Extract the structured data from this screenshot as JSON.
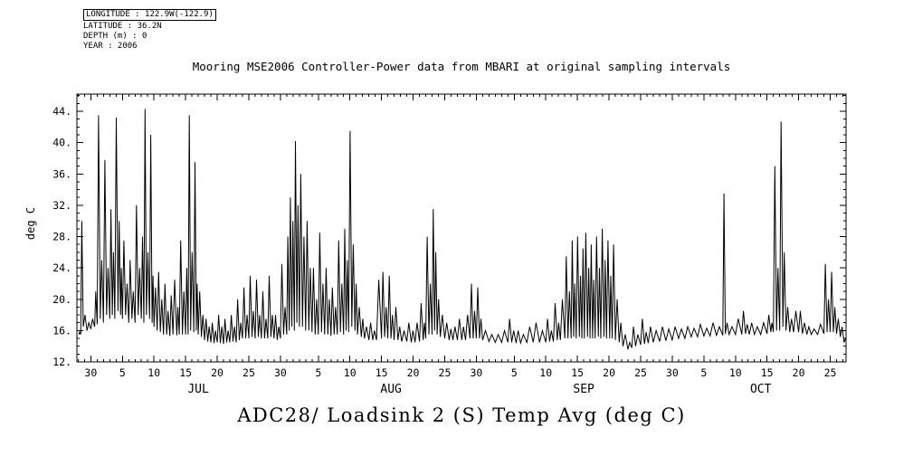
{
  "meta": {
    "lines": [
      "LONGITUDE : 122.9W(-122.9)",
      "LATITUDE : 36.2N",
      "DEPTH (m) : 0",
      "YEAR : 2006"
    ]
  },
  "title": "Mooring MSE2006 Controller-Power data from MBARI at original sampling intervals",
  "footer_title": "ADC28/ Loadsink 2 (S) Temp Avg (deg C)",
  "colors": {
    "line": "#000000",
    "background": "#ffffff",
    "text": "#000000"
  },
  "chart_data": {
    "type": "line",
    "title": "Mooring MSE2006 Controller-Power data from MBARI at original sampling intervals",
    "caption": "ADC28/ Loadsink 2 (S) Temp Avg (deg C)",
    "ylabel": "deg C",
    "xlabel": "",
    "ylim": [
      12,
      46.2
    ],
    "xlim_days": [
      -2.2,
      119.5
    ],
    "x_unit": "days since Jun 30 2006 (tick labels are calendar day numbers)",
    "grid": false,
    "legend": "none",
    "yticks": {
      "major_values": [
        12,
        16,
        20,
        24,
        28,
        32,
        36,
        40,
        44
      ],
      "labels": [
        "12.",
        "16.",
        "20.",
        "24.",
        "28.",
        "32.",
        "36.",
        "40.",
        "44."
      ],
      "minor_step": 1
    },
    "xticks": {
      "major": [
        [
          0,
          "30"
        ],
        [
          5,
          "5"
        ],
        [
          10,
          "10"
        ],
        [
          15,
          "15"
        ],
        [
          20,
          "20"
        ],
        [
          25,
          "25"
        ],
        [
          30,
          "30"
        ],
        [
          36,
          "5"
        ],
        [
          41,
          "10"
        ],
        [
          46,
          "15"
        ],
        [
          51,
          "20"
        ],
        [
          56,
          "25"
        ],
        [
          61,
          "30"
        ],
        [
          67,
          "5"
        ],
        [
          72,
          "10"
        ],
        [
          77,
          "15"
        ],
        [
          82,
          "20"
        ],
        [
          87,
          "25"
        ],
        [
          92,
          "30"
        ],
        [
          97,
          "5"
        ],
        [
          102,
          "10"
        ],
        [
          107,
          "15"
        ],
        [
          112,
          "20"
        ],
        [
          117,
          "25"
        ]
      ],
      "minor_step": 1
    },
    "months": [
      [
        17,
        "JUL"
      ],
      [
        47.5,
        "AUG"
      ],
      [
        78,
        "SEP"
      ],
      [
        106,
        "OCT"
      ]
    ],
    "series": [
      {
        "name": "ADC28/ Loadsink 2 (S) Temp Avg (deg C)",
        "units": "deg C",
        "encoding": "each entry: [day, baseline_degC, daily_spike_peak_degC]",
        "points": [
          [
            -1.9,
            15.5,
            15.8
          ],
          [
            -1.6,
            15.5,
            30
          ],
          [
            -1.2,
            16.5,
            18
          ],
          [
            -0.6,
            16,
            17
          ],
          [
            0,
            16.2,
            17.5
          ],
          [
            0.6,
            16.5,
            21
          ],
          [
            1,
            16.8,
            43.5
          ],
          [
            1.5,
            17.5,
            25
          ],
          [
            2,
            17,
            37.8
          ],
          [
            2.5,
            18,
            24
          ],
          [
            3,
            17.5,
            31.5
          ],
          [
            3.4,
            18,
            26
          ],
          [
            3.8,
            17.5,
            43.2
          ],
          [
            4.3,
            18.5,
            30
          ],
          [
            4.7,
            18,
            24
          ],
          [
            5,
            17.5,
            27.5
          ],
          [
            5.5,
            18,
            22
          ],
          [
            6,
            17,
            25
          ],
          [
            6.5,
            17.5,
            21
          ],
          [
            7,
            17,
            32
          ],
          [
            7.5,
            18,
            24
          ],
          [
            8,
            17.5,
            28
          ],
          [
            8.4,
            17,
            44.3
          ],
          [
            8.8,
            18,
            26
          ],
          [
            9.3,
            17.5,
            41
          ],
          [
            9.7,
            17,
            23
          ],
          [
            10,
            16.5,
            21.5
          ],
          [
            10.5,
            16,
            23.5
          ],
          [
            11,
            15.8,
            20
          ],
          [
            11.5,
            15.5,
            22
          ],
          [
            12,
            15.5,
            18.5
          ],
          [
            12.5,
            15.3,
            20.5
          ],
          [
            13,
            15.5,
            22.5
          ],
          [
            13.6,
            15.4,
            19
          ],
          [
            14,
            15.5,
            27.5
          ],
          [
            14.5,
            15.5,
            21
          ],
          [
            15,
            15.5,
            24
          ],
          [
            15.4,
            15.5,
            43.5
          ],
          [
            15.8,
            16,
            26
          ],
          [
            16.3,
            15.8,
            37.5
          ],
          [
            16.7,
            16,
            22
          ],
          [
            17,
            15.5,
            21
          ],
          [
            17.5,
            15.2,
            18
          ],
          [
            18,
            14.8,
            17.5
          ],
          [
            18.5,
            14.6,
            16.5
          ],
          [
            19,
            14.5,
            17
          ],
          [
            19.5,
            14.4,
            16
          ],
          [
            20,
            14.5,
            18
          ],
          [
            20.5,
            14.4,
            16.5
          ],
          [
            21,
            14.3,
            17.5
          ],
          [
            21.5,
            14.5,
            16
          ],
          [
            22,
            14.5,
            18
          ],
          [
            22.5,
            14.6,
            16.5
          ],
          [
            23,
            14.5,
            20
          ],
          [
            23.5,
            14.8,
            17
          ],
          [
            24,
            15,
            21.5
          ],
          [
            24.5,
            15,
            18
          ],
          [
            25,
            15,
            23
          ],
          [
            25.5,
            15.2,
            18.5
          ],
          [
            26,
            15,
            22.5
          ],
          [
            26.5,
            15.2,
            18
          ],
          [
            27,
            15,
            21
          ],
          [
            27.5,
            15,
            17.5
          ],
          [
            28,
            15,
            23
          ],
          [
            28.5,
            15.2,
            18
          ],
          [
            29,
            15,
            18
          ],
          [
            29.5,
            14.8,
            16.5
          ],
          [
            30,
            15,
            24.5
          ],
          [
            30.5,
            15.5,
            19
          ],
          [
            31,
            15.5,
            28
          ],
          [
            31.4,
            16,
            33
          ],
          [
            31.8,
            16.5,
            30
          ],
          [
            32.2,
            16,
            40.2
          ],
          [
            32.6,
            17,
            32
          ],
          [
            33,
            16.5,
            36
          ],
          [
            33.5,
            16.5,
            28
          ],
          [
            34,
            16,
            30
          ],
          [
            34.5,
            16,
            24
          ],
          [
            35,
            15.8,
            24
          ],
          [
            35.5,
            15.5,
            20
          ],
          [
            36,
            15.5,
            28.5
          ],
          [
            36.5,
            15.8,
            22
          ],
          [
            37,
            15.5,
            24
          ],
          [
            37.5,
            15.5,
            20
          ],
          [
            38,
            15.3,
            21.5
          ],
          [
            38.5,
            15.5,
            19
          ],
          [
            39,
            15.5,
            27.5
          ],
          [
            39.5,
            15.8,
            22
          ],
          [
            40,
            15.5,
            29
          ],
          [
            40.4,
            16,
            25
          ],
          [
            40.8,
            15.8,
            41.5
          ],
          [
            41.3,
            16.5,
            27
          ],
          [
            41.8,
            16,
            22
          ],
          [
            42.2,
            15.5,
            19
          ],
          [
            42.8,
            15.2,
            17.5
          ],
          [
            43.3,
            15,
            16.5
          ],
          [
            44,
            14.8,
            17
          ],
          [
            44.6,
            14.8,
            16
          ],
          [
            45.2,
            14.8,
            22.5
          ],
          [
            46,
            15,
            23.5
          ],
          [
            46.5,
            15.2,
            19
          ],
          [
            47,
            15,
            23
          ],
          [
            47.5,
            15,
            18
          ],
          [
            48,
            14.8,
            19
          ],
          [
            48.6,
            14.8,
            16.5
          ],
          [
            49.2,
            14.6,
            16
          ],
          [
            50,
            14.6,
            17
          ],
          [
            50.7,
            14.5,
            16
          ],
          [
            51.3,
            14.5,
            17
          ],
          [
            52,
            14.6,
            19.5
          ],
          [
            52.6,
            14.8,
            17
          ],
          [
            53,
            15,
            28
          ],
          [
            53.5,
            15.5,
            22
          ],
          [
            54,
            15.5,
            31.5
          ],
          [
            54.4,
            16,
            26
          ],
          [
            54.8,
            15.5,
            20
          ],
          [
            55.3,
            15.2,
            18
          ],
          [
            56,
            15,
            17
          ],
          [
            56.7,
            14.8,
            16.2
          ],
          [
            57.3,
            14.8,
            16.5
          ],
          [
            58,
            14.8,
            17.5
          ],
          [
            58.7,
            14.8,
            16.5
          ],
          [
            59.3,
            14.8,
            18
          ],
          [
            60,
            15,
            22
          ],
          [
            60.5,
            15,
            18.5
          ],
          [
            61,
            15,
            21.5
          ],
          [
            61.5,
            15,
            17.5
          ],
          [
            62,
            14.8,
            16
          ],
          [
            63,
            14.6,
            15.5
          ],
          [
            64,
            14.5,
            15.5
          ],
          [
            65,
            14.5,
            16
          ],
          [
            66,
            14.5,
            17.5
          ],
          [
            66.6,
            14.5,
            16
          ],
          [
            67.3,
            14.4,
            16
          ],
          [
            68,
            14.4,
            15.5
          ],
          [
            69,
            14.5,
            16.5
          ],
          [
            70,
            14.5,
            17
          ],
          [
            71,
            14.5,
            16
          ],
          [
            72,
            14.5,
            17.5
          ],
          [
            72.6,
            14.6,
            16
          ],
          [
            73.2,
            14.6,
            19.5
          ],
          [
            73.8,
            14.8,
            17
          ],
          [
            74.3,
            14.8,
            20
          ],
          [
            75,
            15,
            25.5
          ],
          [
            75.5,
            15,
            21
          ],
          [
            76,
            15,
            27.5
          ],
          [
            76.4,
            15.2,
            22
          ],
          [
            76.8,
            15,
            28
          ],
          [
            77.3,
            15.2,
            23
          ],
          [
            77.7,
            15,
            26.5
          ],
          [
            78.1,
            15,
            28.5
          ],
          [
            78.6,
            15.2,
            24
          ],
          [
            79,
            15,
            27
          ],
          [
            79.4,
            15,
            22.5
          ],
          [
            79.8,
            15,
            28
          ],
          [
            80.3,
            15.2,
            24
          ],
          [
            80.7,
            15,
            29
          ],
          [
            81.2,
            15.2,
            25
          ],
          [
            81.6,
            15,
            27.5
          ],
          [
            82.1,
            15,
            23
          ],
          [
            82.5,
            15,
            27
          ],
          [
            83,
            14.8,
            20
          ],
          [
            83.6,
            14.5,
            17
          ],
          [
            84.2,
            14,
            15.5
          ],
          [
            85,
            13.6,
            14.5
          ],
          [
            85.6,
            13.8,
            16.5
          ],
          [
            86.2,
            14,
            15.5
          ],
          [
            87,
            14.2,
            17.5
          ],
          [
            87.6,
            14.3,
            15.8
          ],
          [
            88.2,
            14.4,
            16.5
          ],
          [
            89,
            14.5,
            16
          ],
          [
            90,
            14.6,
            16.5
          ],
          [
            91,
            14.7,
            16.2
          ],
          [
            92,
            14.8,
            16.5
          ],
          [
            93,
            15,
            16.2
          ],
          [
            94,
            15,
            16.5
          ],
          [
            95,
            15.2,
            16.3
          ],
          [
            96,
            15.2,
            16.8
          ],
          [
            97,
            15.3,
            16.3
          ],
          [
            98,
            15.3,
            17
          ],
          [
            99,
            15.4,
            16.5
          ],
          [
            100,
            15.4,
            33.5
          ],
          [
            100.4,
            15.6,
            17
          ],
          [
            101,
            15.5,
            16.5
          ],
          [
            102,
            15.5,
            17.5
          ],
          [
            103,
            15.5,
            18.5
          ],
          [
            103.6,
            15.6,
            16.8
          ],
          [
            104.2,
            15.5,
            17
          ],
          [
            105,
            15.5,
            16.5
          ],
          [
            106,
            15.5,
            17
          ],
          [
            107,
            15.6,
            18
          ],
          [
            107.6,
            15.8,
            17
          ],
          [
            108,
            15.8,
            37
          ],
          [
            108.5,
            16,
            24
          ],
          [
            109,
            16,
            42.7
          ],
          [
            109.5,
            16.5,
            26
          ],
          [
            110,
            16,
            19
          ],
          [
            110.6,
            15.8,
            17.5
          ],
          [
            111.2,
            15.8,
            18.5
          ],
          [
            112,
            15.8,
            18.5
          ],
          [
            112.6,
            15.6,
            17
          ],
          [
            113.3,
            15.5,
            16.5
          ],
          [
            114,
            15.5,
            16.2
          ],
          [
            115,
            15.5,
            16.8
          ],
          [
            116,
            15.6,
            24.5
          ],
          [
            116.5,
            15.8,
            20
          ],
          [
            117,
            15.8,
            23.5
          ],
          [
            117.5,
            15.8,
            19
          ],
          [
            118,
            15.6,
            17.5
          ],
          [
            118.6,
            15.2,
            16.5
          ],
          [
            119.2,
            14.5,
            15
          ]
        ]
      }
    ]
  }
}
